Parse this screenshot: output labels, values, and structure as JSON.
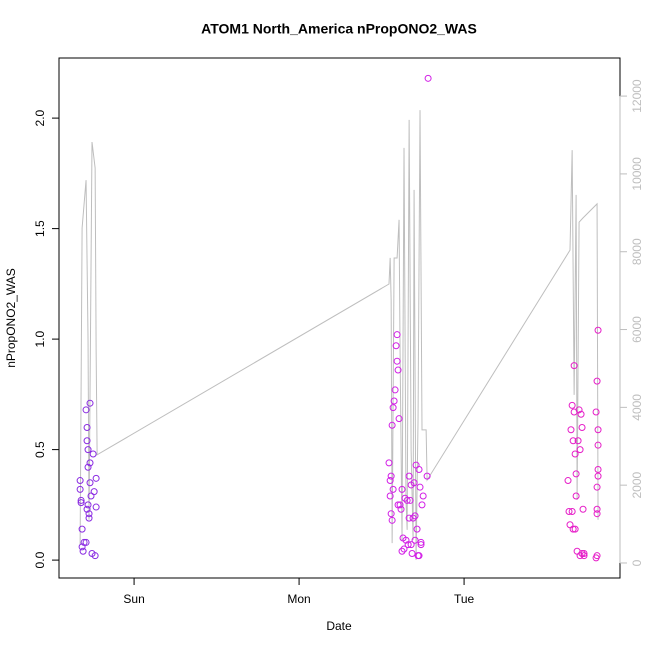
{
  "chart_data": {
    "type": "scatter",
    "title": "ATOM1 North_America nPropONO2_WAS",
    "x_label": "Date",
    "y_label": "nPropONO2_WAS",
    "xlim": [
      -0.455,
      2.945
    ],
    "xticks": [
      {
        "value": 0,
        "label": "Sun"
      },
      {
        "value": 1,
        "label": "Mon"
      },
      {
        "value": 2,
        "label": "Tue"
      }
    ],
    "ylim": [
      -0.081,
      2.272
    ],
    "yticks": [
      {
        "value": 0,
        "label": "0.0"
      },
      0.5,
      {
        "value": 1,
        "label": "1.0"
      },
      1.5,
      {
        "value": 2,
        "label": "2.0"
      }
    ],
    "y2lim": [
      -386,
      12979
    ],
    "y2ticks": [
      0,
      2000,
      4000,
      6000,
      8000,
      10000,
      12000
    ],
    "y2_color": "#bebebe",
    "series": [
      {
        "color": "#8a2be2",
        "x": [
          -0.327,
          -0.327,
          -0.321,
          -0.321,
          -0.315,
          -0.315,
          -0.309,
          -0.291,
          -0.291,
          -0.285,
          -0.285,
          -0.279,
          -0.279,
          -0.273,
          -0.273,
          -0.267,
          -0.267,
          -0.267,
          -0.261,
          -0.255,
          -0.248,
          -0.242,
          -0.23,
          -0.23,
          -0.236,
          -0.285,
          -0.279,
          -0.303
        ],
        "values": [
          0.36,
          0.32,
          0.26,
          0.27,
          0.14,
          0.06,
          0.04,
          0.08,
          0.68,
          0.6,
          0.54,
          0.5,
          0.42,
          0.21,
          0.19,
          0.44,
          0.35,
          0.71,
          0.29,
          0.03,
          0.48,
          0.31,
          0.37,
          0.24,
          0.02,
          0.23,
          0.25,
          0.08
        ]
      },
      {
        "color": "#d21fe6",
        "x": [
          1.545,
          1.552,
          1.552,
          1.558,
          1.564,
          1.564,
          1.57,
          1.576,
          1.582,
          1.588,
          1.594,
          1.594,
          1.6,
          1.57,
          1.558,
          1.606,
          1.612,
          1.618,
          1.624,
          1.63,
          1.636,
          1.642,
          1.648,
          1.655,
          1.661,
          1.667,
          1.673,
          1.679,
          1.679,
          1.685,
          1.691,
          1.697,
          1.703,
          1.709,
          1.715,
          1.721,
          1.727,
          1.733,
          1.739,
          1.739,
          1.745,
          1.752,
          1.782,
          1.776,
          1.6,
          1.667,
          1.727,
          1.624,
          1.703
        ],
        "values": [
          0.44,
          0.36,
          0.29,
          0.21,
          0.18,
          0.61,
          0.69,
          0.72,
          0.77,
          0.97,
          1.02,
          0.9,
          0.86,
          0.32,
          0.38,
          0.64,
          0.25,
          0.23,
          0.32,
          0.1,
          0.05,
          0.28,
          0.09,
          0.27,
          0.07,
          0.19,
          0.27,
          0.34,
          0.07,
          0.03,
          0.19,
          0.35,
          0.2,
          0.43,
          0.14,
          0.02,
          0.02,
          0.33,
          0.07,
          0.08,
          0.25,
          0.29,
          2.18,
          0.38,
          0.25,
          0.38,
          0.41,
          0.04,
          0.09
        ]
      },
      {
        "color": "#e61ec8",
        "x": [
          2.63,
          2.636,
          2.642,
          2.648,
          2.655,
          2.661,
          2.667,
          2.667,
          2.673,
          2.673,
          2.679,
          2.679,
          2.685,
          2.691,
          2.697,
          2.703,
          2.709,
          2.715,
          2.715,
          2.721,
          2.727,
          2.8,
          2.806,
          2.806,
          2.812,
          2.812,
          2.812,
          2.812,
          2.806,
          2.806,
          2.806,
          2.8,
          2.812,
          2.655,
          2.703,
          2.727,
          2.661
        ],
        "values": [
          0.36,
          0.22,
          0.16,
          0.59,
          0.7,
          0.54,
          0.88,
          0.67,
          0.48,
          0.14,
          0.29,
          0.39,
          0.04,
          0.54,
          0.68,
          0.5,
          0.66,
          0.6,
          0.03,
          0.23,
          0.03,
          0.67,
          0.33,
          0.81,
          0.59,
          0.41,
          0.52,
          1.04,
          0.23,
          0.21,
          0.02,
          0.01,
          0.38,
          0.22,
          0.02,
          0.02,
          0.14
        ]
      },
      {
        "type": "line",
        "axis": "y2",
        "color": "#bebebe",
        "x": [
          -0.327,
          -0.315,
          -0.291,
          -0.279,
          -0.273,
          -0.255,
          -0.236,
          -0.23,
          -0.224,
          1.545,
          1.552,
          1.558,
          1.564,
          1.576,
          1.594,
          1.606,
          1.612,
          1.624,
          1.636,
          1.648,
          1.655,
          1.667,
          1.679,
          1.691,
          1.697,
          1.709,
          1.721,
          1.733,
          1.745,
          1.77,
          1.776,
          2.642,
          2.655,
          2.667,
          2.679,
          2.685,
          2.697,
          2.721,
          2.806,
          2.812
        ],
        "values": [
          460,
          8610,
          9840,
          5730,
          1110,
          10820,
          10150,
          5470,
          2780,
          7170,
          7840,
          6760,
          510,
          7840,
          7840,
          8820,
          5470,
          590,
          10670,
          1620,
          850,
          11390,
          2900,
          590,
          9590,
          80,
          3680,
          11640,
          3420,
          3420,
          2130,
          8040,
          10610,
          4320,
          9460,
          1620,
          8760,
          8870,
          9230,
          1110
        ]
      }
    ]
  }
}
